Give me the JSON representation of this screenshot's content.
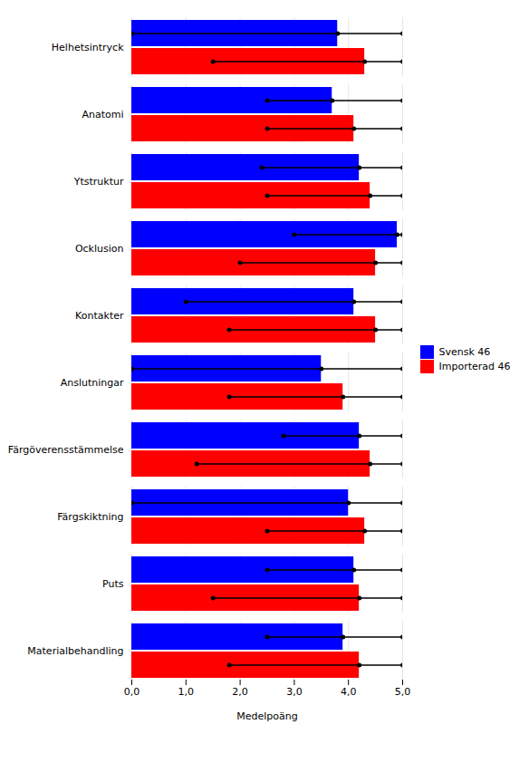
{
  "chart_data": {
    "type": "bar",
    "orientation": "horizontal",
    "categories": [
      "Helhetsintryck",
      "Anatomi",
      "Ytstruktur",
      "Ocklusion",
      "Kontakter",
      "Anslutningar",
      "Färgöverensstämmelse",
      "Färgskiktning",
      "Puts",
      "Materialbehandling"
    ],
    "series": [
      {
        "name": "Svensk 46",
        "color": "#0000FF",
        "values": [
          3.8,
          3.7,
          4.2,
          4.9,
          4.1,
          3.5,
          4.2,
          4.0,
          4.1,
          3.9
        ],
        "min": [
          0.0,
          2.5,
          2.4,
          3.0,
          1.0,
          0.0,
          2.8,
          0.0,
          2.5,
          2.5
        ],
        "max": [
          5.0,
          5.0,
          5.0,
          5.0,
          5.0,
          5.0,
          5.0,
          5.0,
          5.0,
          5.0
        ]
      },
      {
        "name": "Importerad 46",
        "color": "#FF0000",
        "values": [
          4.3,
          4.1,
          4.4,
          4.5,
          4.5,
          3.9,
          4.4,
          4.3,
          4.2,
          4.2
        ],
        "min": [
          1.5,
          2.5,
          2.5,
          2.0,
          1.8,
          1.8,
          1.2,
          2.5,
          1.5,
          1.8
        ],
        "max": [
          5.0,
          5.0,
          5.0,
          5.0,
          5.0,
          5.0,
          5.0,
          5.0,
          5.0,
          5.0
        ]
      }
    ],
    "xlabel": "Medelpoäng",
    "xlim": [
      0,
      5.0
    ],
    "xticks": [
      {
        "value": 0.0,
        "label": "0,0"
      },
      {
        "value": 1.0,
        "label": "1,0"
      },
      {
        "value": 2.0,
        "label": "2,0"
      },
      {
        "value": 3.0,
        "label": "3,0"
      },
      {
        "value": 4.0,
        "label": "4,0"
      },
      {
        "value": 5.0,
        "label": "5,0"
      }
    ],
    "grid": true,
    "legend": "right"
  }
}
